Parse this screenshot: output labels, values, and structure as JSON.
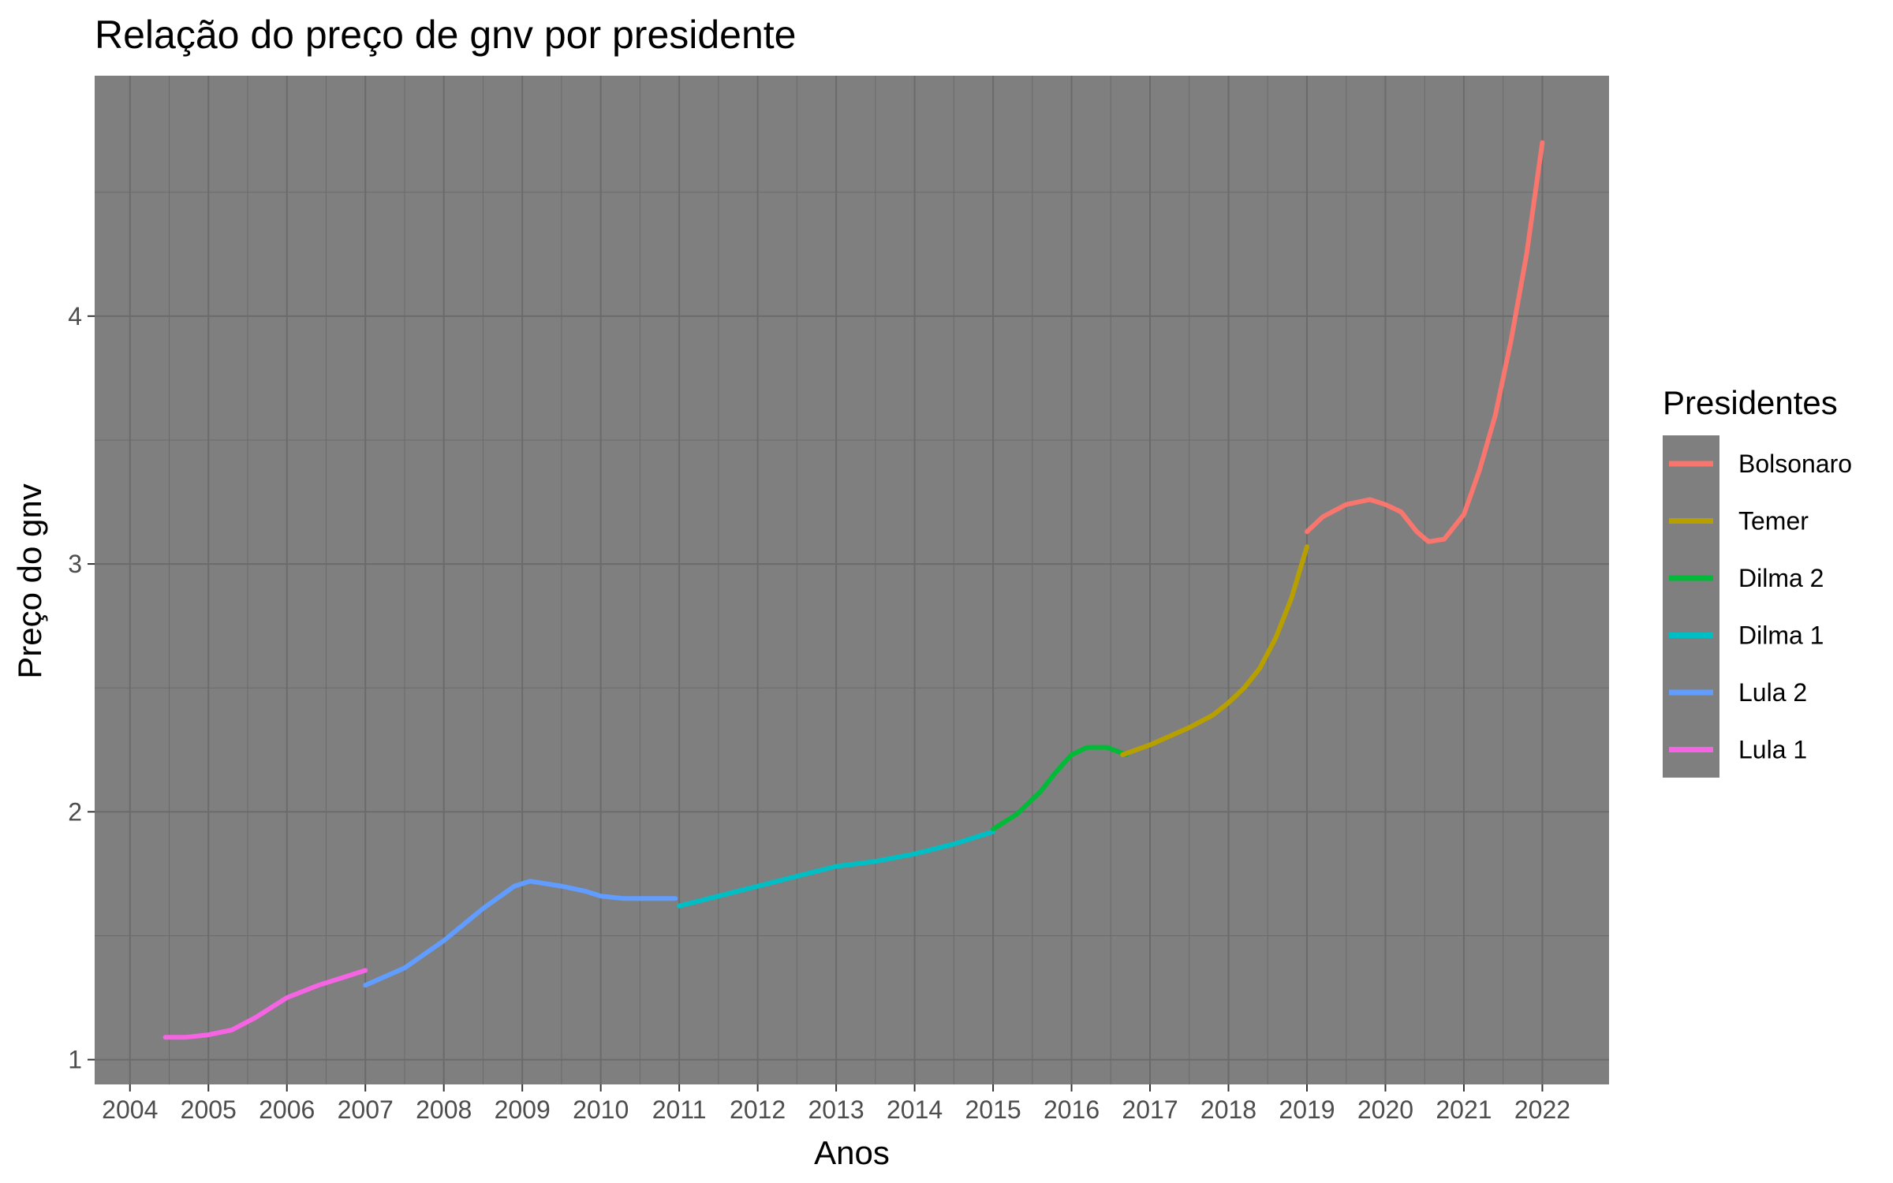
{
  "chart_data": {
    "type": "line",
    "title": "Relação do preço de gnv por presidente",
    "xlabel": "Anos",
    "ylabel": "Preço do gnv",
    "xlim": [
      2003.55,
      2022.85
    ],
    "ylim": [
      0.9,
      4.97
    ],
    "x_ticks": [
      "2004",
      "2005",
      "2006",
      "2007",
      "2008",
      "2009",
      "2010",
      "2011",
      "2012",
      "2013",
      "2014",
      "2015",
      "2016",
      "2017",
      "2018",
      "2019",
      "2020",
      "2021",
      "2022"
    ],
    "y_ticks": [
      "1",
      "2",
      "3",
      "4"
    ],
    "grid": true,
    "panel_background": "#7f7f7f",
    "grid_color": "#6b6b6b",
    "legend": {
      "title": "Presidentes",
      "position": "right",
      "entries": [
        {
          "name": "Bolsonaro",
          "color": "#F8766D"
        },
        {
          "name": "Temer",
          "color": "#B79F00"
        },
        {
          "name": "Dilma 2",
          "color": "#00BA38"
        },
        {
          "name": "Dilma 1",
          "color": "#00BFC4"
        },
        {
          "name": "Lula 2",
          "color": "#619CFF"
        },
        {
          "name": "Lula 1",
          "color": "#F564E3"
        }
      ]
    },
    "series": [
      {
        "name": "Lula 1",
        "color": "#F564E3",
        "points": [
          [
            2004.45,
            1.09
          ],
          [
            2004.7,
            1.09
          ],
          [
            2005.0,
            1.1
          ],
          [
            2005.3,
            1.12
          ],
          [
            2005.6,
            1.17
          ],
          [
            2006.0,
            1.25
          ],
          [
            2006.4,
            1.3
          ],
          [
            2006.7,
            1.33
          ],
          [
            2007.0,
            1.36
          ]
        ]
      },
      {
        "name": "Lula 2",
        "color": "#619CFF",
        "points": [
          [
            2007.0,
            1.3
          ],
          [
            2007.5,
            1.37
          ],
          [
            2008.0,
            1.48
          ],
          [
            2008.5,
            1.61
          ],
          [
            2008.9,
            1.7
          ],
          [
            2009.1,
            1.72
          ],
          [
            2009.5,
            1.7
          ],
          [
            2009.8,
            1.68
          ],
          [
            2010.0,
            1.66
          ],
          [
            2010.3,
            1.65
          ],
          [
            2010.6,
            1.65
          ],
          [
            2010.95,
            1.65
          ]
        ]
      },
      {
        "name": "Dilma 1",
        "color": "#00BFC4",
        "points": [
          [
            2011.0,
            1.62
          ],
          [
            2011.5,
            1.66
          ],
          [
            2012.0,
            1.7
          ],
          [
            2012.5,
            1.74
          ],
          [
            2013.0,
            1.78
          ],
          [
            2013.5,
            1.8
          ],
          [
            2014.0,
            1.83
          ],
          [
            2014.5,
            1.87
          ],
          [
            2015.0,
            1.92
          ]
        ]
      },
      {
        "name": "Dilma 2",
        "color": "#00BA38",
        "points": [
          [
            2015.0,
            1.93
          ],
          [
            2015.3,
            1.99
          ],
          [
            2015.6,
            2.08
          ],
          [
            2015.8,
            2.16
          ],
          [
            2016.0,
            2.23
          ],
          [
            2016.2,
            2.26
          ],
          [
            2016.45,
            2.26
          ],
          [
            2016.7,
            2.23
          ]
        ]
      },
      {
        "name": "Temer",
        "color": "#B79F00",
        "points": [
          [
            2016.65,
            2.23
          ],
          [
            2017.0,
            2.27
          ],
          [
            2017.5,
            2.34
          ],
          [
            2017.8,
            2.39
          ],
          [
            2018.0,
            2.44
          ],
          [
            2018.2,
            2.5
          ],
          [
            2018.4,
            2.58
          ],
          [
            2018.6,
            2.7
          ],
          [
            2018.8,
            2.86
          ],
          [
            2019.0,
            3.07
          ]
        ]
      },
      {
        "name": "Bolsonaro",
        "color": "#F8766D",
        "points": [
          [
            2019.0,
            3.13
          ],
          [
            2019.2,
            3.19
          ],
          [
            2019.5,
            3.24
          ],
          [
            2019.8,
            3.26
          ],
          [
            2020.0,
            3.24
          ],
          [
            2020.2,
            3.21
          ],
          [
            2020.4,
            3.13
          ],
          [
            2020.55,
            3.09
          ],
          [
            2020.75,
            3.1
          ],
          [
            2021.0,
            3.2
          ],
          [
            2021.2,
            3.38
          ],
          [
            2021.4,
            3.6
          ],
          [
            2021.6,
            3.9
          ],
          [
            2021.8,
            4.25
          ],
          [
            2022.0,
            4.7
          ]
        ]
      }
    ]
  }
}
